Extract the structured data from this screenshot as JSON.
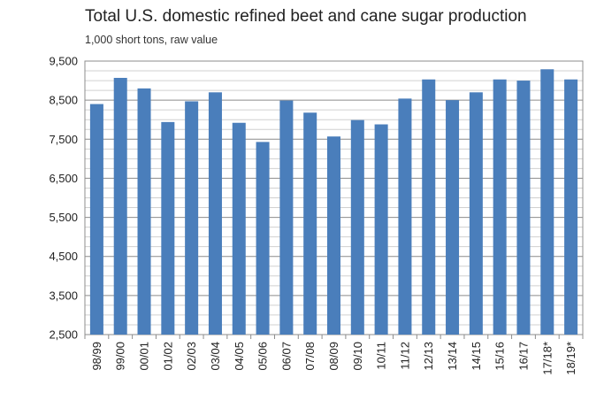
{
  "chart_data": {
    "type": "bar",
    "title": "Total U.S. domestic refined beet and cane sugar production",
    "subtitle": "1,000 short tons, raw value",
    "xlabel": "",
    "ylabel": "",
    "ylim": [
      2500,
      9500
    ],
    "yticks": [
      2500,
      3500,
      4500,
      5500,
      6500,
      7500,
      8500,
      9500
    ],
    "ytick_labels": [
      "2,500",
      "3,500",
      "4,500",
      "5,500",
      "6,500",
      "7,500",
      "8,500",
      "9,500"
    ],
    "grid": true,
    "bar_color": "#4a7ebb",
    "categories": [
      "98/99",
      "99/00",
      "00/01",
      "01/02",
      "02/03",
      "03/04",
      "04/05",
      "05/06",
      "06/07",
      "07/08",
      "08/09",
      "09/10",
      "10/11",
      "11/12",
      "12/13",
      "13/14",
      "14/15",
      "15/16",
      "16/17",
      "17/18*",
      "18/19*"
    ],
    "values": [
      8400,
      9070,
      8800,
      7940,
      8470,
      8700,
      7920,
      7430,
      8490,
      8180,
      7570,
      7990,
      7880,
      8540,
      9030,
      8500,
      8700,
      9030,
      9000,
      9290,
      9030
    ]
  }
}
